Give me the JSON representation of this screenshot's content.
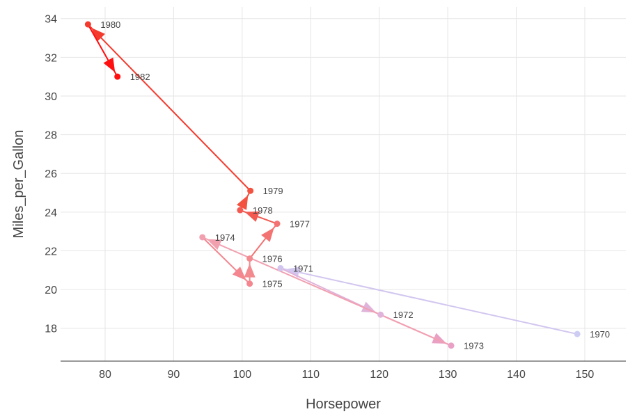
{
  "chart_data": {
    "type": "line",
    "xlabel": "Horsepower",
    "ylabel": "Miles_per_Gallon",
    "xlim": [
      73.5,
      156
    ],
    "ylim": [
      16.3,
      34.6
    ],
    "x_ticks": [
      80,
      90,
      100,
      110,
      120,
      130,
      140,
      150
    ],
    "y_ticks": [
      18,
      20,
      22,
      24,
      26,
      28,
      30,
      32,
      34
    ],
    "grid": true,
    "points": [
      {
        "label": "1970",
        "x": 148.9,
        "y": 17.7,
        "color": "#cdcdf4"
      },
      {
        "label": "1971",
        "x": 105.6,
        "y": 21.1,
        "color": "#d2c6ef"
      },
      {
        "label": "1972",
        "x": 120.2,
        "y": 18.7,
        "color": "#e0b3da"
      },
      {
        "label": "1973",
        "x": 130.5,
        "y": 17.1,
        "color": "#ea9fc4"
      },
      {
        "label": "1974",
        "x": 94.2,
        "y": 22.7,
        "color": "#f1a0b0"
      },
      {
        "label": "1975",
        "x": 101.1,
        "y": 20.3,
        "color": "#f3868f"
      },
      {
        "label": "1976",
        "x": 101.1,
        "y": 21.6,
        "color": "#f38a8f"
      },
      {
        "label": "1977",
        "x": 105.1,
        "y": 23.4,
        "color": "#f37373"
      },
      {
        "label": "1978",
        "x": 99.7,
        "y": 24.1,
        "color": "#f25a52"
      },
      {
        "label": "1979",
        "x": 101.2,
        "y": 25.1,
        "color": "#f2523f"
      },
      {
        "label": "1980",
        "x": 77.5,
        "y": 33.7,
        "color": "#f43a2d"
      },
      {
        "label": "1982",
        "x": 81.8,
        "y": 31.0,
        "color": "#ff1010"
      }
    ]
  }
}
